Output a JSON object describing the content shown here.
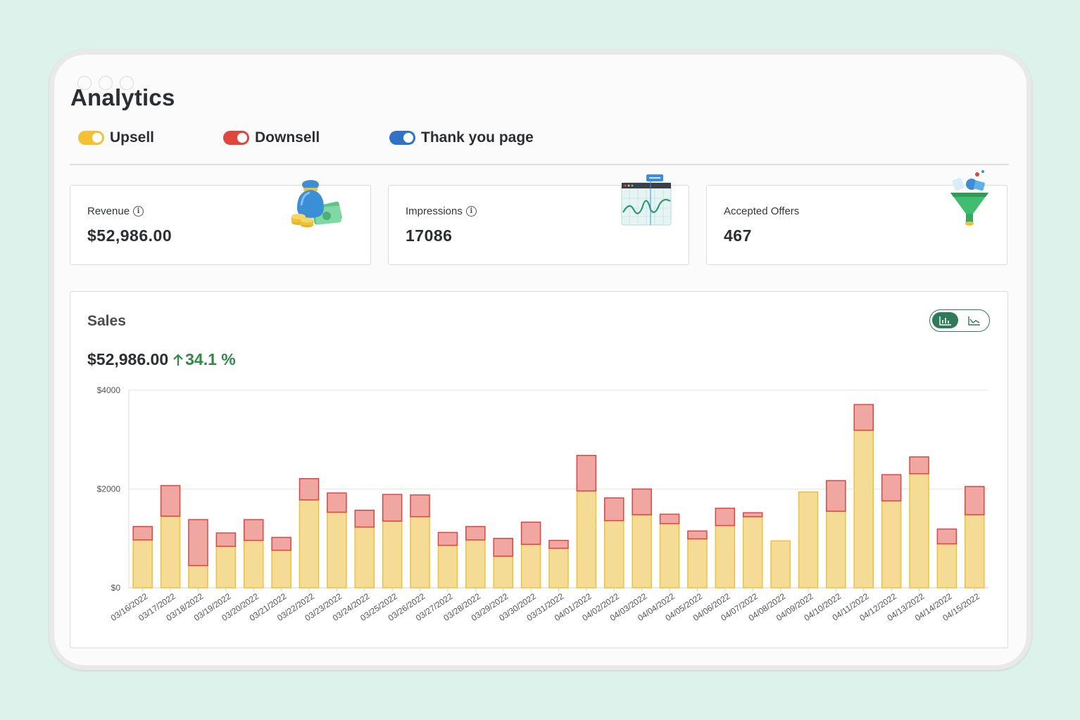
{
  "page": {
    "title": "Analytics"
  },
  "toggles": [
    {
      "label": "Upsell",
      "color": "#f2c230"
    },
    {
      "label": "Downsell",
      "color": "#e2453c"
    },
    {
      "label": "Thank you page",
      "color": "#2f73c9"
    }
  ],
  "stats": [
    {
      "label": "Revenue",
      "value": "$52,986.00",
      "icon": "money-bag-icon"
    },
    {
      "label": "Impressions",
      "value": "17086",
      "icon": "line-chart-browser-icon"
    },
    {
      "label": "Accepted Offers",
      "value": "467",
      "icon": "funnel-icon"
    }
  ],
  "sales": {
    "title": "Sales",
    "value": "$52,986.00",
    "delta": "34.1 %",
    "delta_color": "#2e8b45"
  },
  "chart_data": {
    "type": "bar",
    "stacked": true,
    "categories": [
      "03/16/2022",
      "03/17/2022",
      "03/18/2022",
      "03/19/2022",
      "03/20/2022",
      "03/21/2022",
      "03/22/2022",
      "03/23/2022",
      "03/24/2022",
      "03/25/2022",
      "03/26/2022",
      "03/27/2022",
      "03/28/2022",
      "03/29/2022",
      "03/30/2022",
      "03/31/2022",
      "04/01/2022",
      "04/02/2022",
      "04/03/2022",
      "04/04/2022",
      "04/05/2022",
      "04/06/2022",
      "04/07/2022",
      "04/08/2022",
      "04/09/2022",
      "04/10/2022",
      "04/11/2022",
      "04/12/2022",
      "04/13/2022",
      "04/14/2022",
      "04/15/2022"
    ],
    "series": [
      {
        "name": "Upsell",
        "color": "#f5dc96",
        "stroke": "#f0c132",
        "values": [
          970,
          1450,
          450,
          840,
          960,
          760,
          1780,
          1530,
          1230,
          1350,
          1440,
          860,
          970,
          640,
          880,
          800,
          1960,
          1360,
          1480,
          1300,
          990,
          1260,
          1440,
          950,
          1940,
          1550,
          3190,
          1760,
          2310,
          890,
          1480
        ]
      },
      {
        "name": "Downsell",
        "color": "#f0a6a1",
        "stroke": "#e0453d",
        "values": [
          270,
          620,
          930,
          270,
          420,
          260,
          430,
          390,
          340,
          540,
          440,
          260,
          270,
          360,
          450,
          160,
          720,
          460,
          520,
          190,
          160,
          350,
          80,
          0,
          0,
          620,
          520,
          530,
          340,
          300,
          570
        ]
      }
    ],
    "y_ticks": [
      "$0",
      "$2000",
      "$4000"
    ],
    "ylim": [
      0,
      4000
    ],
    "grid": true,
    "legend": "none"
  }
}
